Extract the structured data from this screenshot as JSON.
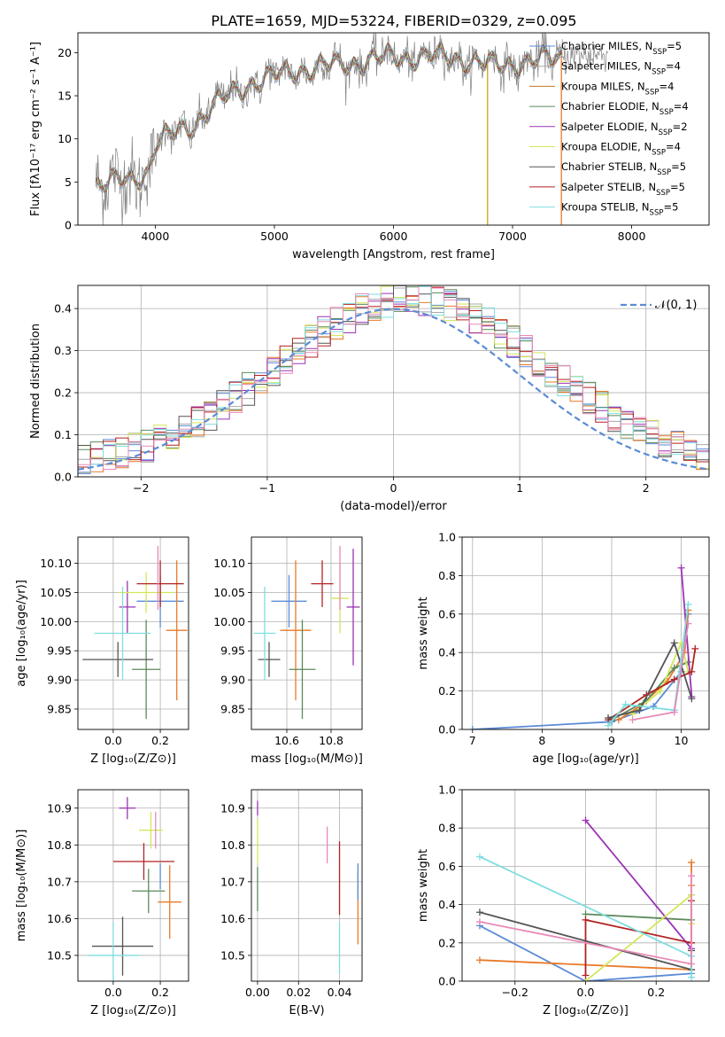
{
  "figure_title": "PLATE=1659, MJD=53224, FIBERID=0329, z=0.095",
  "colors": {
    "Chabrier MILES": "#5b8bd6",
    "Salpeter MILES": "#a9a9a9",
    "Kroupa MILES": "#e87a2a",
    "Chabrier ELODIE": "#5b8a5b",
    "Salpeter ELODIE": "#9b33b5",
    "Kroupa ELODIE": "#d4e65a",
    "Chabrier STELIB": "#555555",
    "Salpeter STELIB": "#b22222",
    "Kroupa STELIB": "#7fdde0",
    "Kroupa ELODIE (E(B-V))": "#e88ab8",
    "reference": "#5b8bd6"
  },
  "chart_data": [
    {
      "id": "spectrum",
      "type": "line",
      "xlabel": "wavelength [Angstrom, rest frame]",
      "ylabel": "Flux [fλ10⁻¹⁷ erg cm⁻² s⁻¹ A⁻¹]",
      "xlim": [
        3350,
        8650
      ],
      "ylim": [
        0,
        22.3
      ],
      "xticks": [
        4000,
        5000,
        6000,
        7000,
        8000
      ],
      "yticks": [
        0,
        5,
        10,
        15,
        20
      ],
      "grid": false,
      "legend_position": "right",
      "legend": [
        {
          "text": "Chabrier MILES, N",
          "sub": "SSP",
          "tail": "=5",
          "color": "#5b8bd6"
        },
        {
          "text": "Salpeter MILES, N",
          "sub": "SSP",
          "tail": "=4",
          "color": "#a9a9a9"
        },
        {
          "text": "Kroupa MILES, N",
          "sub": "SSP",
          "tail": "=4",
          "color": "#c07a20"
        },
        {
          "text": "Chabrier ELODIE, N",
          "sub": "SSP",
          "tail": "=4",
          "color": "#5b8a5b"
        },
        {
          "text": "Salpeter ELODIE, N",
          "sub": "SSP",
          "tail": "=2",
          "color": "#9b33b5"
        },
        {
          "text": "Kroupa ELODIE, N",
          "sub": "SSP",
          "tail": "=4",
          "color": "#d4e65a"
        },
        {
          "text": "Chabrier STELIB, N",
          "sub": "SSP",
          "tail": "=5",
          "color": "#555555"
        },
        {
          "text": "Salpeter STELIB, N",
          "sub": "SSP",
          "tail": "=5",
          "color": "#b22222"
        },
        {
          "text": "Kroupa STELIB, N",
          "sub": "SSP",
          "tail": "=5",
          "color": "#7fdde0"
        }
      ],
      "continuum_knots": [
        [
          3500,
          4.8
        ],
        [
          3800,
          5.2
        ],
        [
          3950,
          6.5
        ],
        [
          4000,
          9.5
        ],
        [
          4300,
          11.5
        ],
        [
          4500,
          14.0
        ],
        [
          4800,
          16.5
        ],
        [
          5200,
          18.0
        ],
        [
          5500,
          18.5
        ],
        [
          6000,
          19.5
        ],
        [
          6500,
          19.5
        ],
        [
          6800,
          18.5
        ],
        [
          7200,
          19.0
        ],
        [
          7400,
          19.5
        ],
        [
          8000,
          20.0
        ],
        [
          8400,
          20.0
        ]
      ],
      "spikes": [
        {
          "x": 6790,
          "y0": 0,
          "y1": 18.6,
          "color": "#d4a020"
        },
        {
          "x": 7410,
          "y0": 0,
          "y1": 19.5,
          "color": "#e87a2a"
        }
      ]
    },
    {
      "id": "residuals",
      "type": "line",
      "xlabel": "(data-model)/error",
      "ylabel": "Normed distribution",
      "xlim": [
        -2.5,
        2.5
      ],
      "ylim": [
        0,
        0.455
      ],
      "xticks": [
        -2,
        -1,
        0,
        1,
        2
      ],
      "yticks": [
        0.0,
        0.1,
        0.2,
        0.3,
        0.4
      ],
      "grid": true,
      "legend_position": "upper right",
      "legend": [
        {
          "text": "𝒩(0, 1)",
          "color": "#5b8bd6",
          "dashed": true
        }
      ],
      "histogram_bin_width": 0.1,
      "histogram_series_colors": [
        "#5b8bd6",
        "#a9a9a9",
        "#e87a2a",
        "#5b8a5b",
        "#9b33b5",
        "#d4e65a",
        "#555555",
        "#b22222",
        "#7fdde0",
        "#e88ab8"
      ]
    },
    {
      "id": "age_vs_Z",
      "type": "scatter",
      "xlabel": "Z [log₁₀(Z/Z⊙)]",
      "ylabel": "age  [log₁₀(age/yr)]",
      "xlim": [
        -0.15,
        0.32
      ],
      "ylim": [
        9.815,
        10.145
      ],
      "xticks": [
        0.0,
        0.2
      ],
      "yticks": [
        9.85,
        9.9,
        9.95,
        10.0,
        10.05,
        10.1
      ],
      "points": [
        {
          "x": 0.2,
          "y": 10.035,
          "xerr": 0.1,
          "yerr": 0.045,
          "color": "#5b8bd6"
        },
        {
          "x": 0.27,
          "y": 9.985,
          "xerr": 0.045,
          "yerr": 0.12,
          "color": "#e87a2a"
        },
        {
          "x": 0.14,
          "y": 9.918,
          "xerr": 0.06,
          "yerr": 0.085,
          "color": "#5b8a5b"
        },
        {
          "x": 0.06,
          "y": 10.025,
          "xerr": 0.035,
          "yerr": 0.045,
          "color": "#9b33b5"
        },
        {
          "x": 0.14,
          "y": 10.05,
          "xerr": 0.12,
          "yerr": 0.035,
          "color": "#d4e65a"
        },
        {
          "x": 0.2,
          "y": 10.065,
          "xerr": 0.1,
          "yerr": 0.04,
          "color": "#b22222"
        },
        {
          "x": 0.02,
          "y": 9.935,
          "xerr": 0.15,
          "yerr": 0.03,
          "color": "#555555"
        },
        {
          "x": 0.04,
          "y": 9.98,
          "xerr": 0.12,
          "yerr": 0.08,
          "color": "#7fdde0"
        },
        {
          "x": 0.19,
          "y": 10.075,
          "xerr": 0.0,
          "yerr": 0.055,
          "color": "#e88ab8"
        }
      ]
    },
    {
      "id": "age_vs_mass",
      "type": "scatter",
      "xlabel": "mass [log₁₀(M/M⊙)]",
      "ylabel": "",
      "xlim": [
        10.44,
        10.94
      ],
      "ylim": [
        9.815,
        10.145
      ],
      "xticks": [
        10.6,
        10.8
      ],
      "yticks": [
        9.85,
        9.9,
        9.95,
        10.0,
        10.05,
        10.1
      ],
      "points": [
        {
          "x": 10.61,
          "y": 10.035,
          "xerr": 0.08,
          "yerr": 0.045,
          "color": "#5b8bd6"
        },
        {
          "x": 10.64,
          "y": 9.985,
          "xerr": 0.07,
          "yerr": 0.12,
          "color": "#e87a2a"
        },
        {
          "x": 10.67,
          "y": 9.918,
          "xerr": 0.06,
          "yerr": 0.085,
          "color": "#5b8a5b"
        },
        {
          "x": 10.9,
          "y": 10.025,
          "xerr": 0.03,
          "yerr": 0.1,
          "color": "#9b33b5"
        },
        {
          "x": 10.84,
          "y": 10.04,
          "xerr": 0.04,
          "yerr": 0.06,
          "color": "#d4e65a"
        },
        {
          "x": 10.76,
          "y": 10.065,
          "xerr": 0.05,
          "yerr": 0.04,
          "color": "#b22222"
        },
        {
          "x": 10.52,
          "y": 9.935,
          "xerr": 0.05,
          "yerr": 0.03,
          "color": "#555555"
        },
        {
          "x": 10.5,
          "y": 9.98,
          "xerr": 0.05,
          "yerr": 0.08,
          "color": "#7fdde0"
        },
        {
          "x": 10.84,
          "y": 10.075,
          "xerr": 0.0,
          "yerr": 0.055,
          "color": "#e88ab8"
        }
      ]
    },
    {
      "id": "mass_weight_vs_age",
      "type": "line",
      "xlabel": "age  [log₁₀(age/yr)]",
      "ylabel": "mass weight",
      "xlim": [
        6.85,
        10.4
      ],
      "ylim": [
        0,
        1.0
      ],
      "xticks": [
        7,
        8,
        9,
        10
      ],
      "yticks": [
        0.0,
        0.2,
        0.4,
        0.6,
        0.8,
        1.0
      ],
      "grid": true,
      "series": [
        {
          "color": "#5b8bd6",
          "x": [
            7.0,
            9.0,
            9.6,
            10.0,
            10.1
          ],
          "y": [
            0.0,
            0.04,
            0.12,
            0.3,
            0.6
          ]
        },
        {
          "color": "#e87a2a",
          "x": [
            9.1,
            9.4,
            9.8,
            10.05,
            10.1
          ],
          "y": [
            0.05,
            0.12,
            0.25,
            0.4,
            0.62
          ]
        },
        {
          "color": "#5b8a5b",
          "x": [
            9.0,
            9.5,
            9.9,
            10.1
          ],
          "y": [
            0.05,
            0.15,
            0.32,
            0.35
          ]
        },
        {
          "color": "#9b33b5",
          "x": [
            10.0,
            10.15
          ],
          "y": [
            0.84,
            0.17
          ]
        },
        {
          "color": "#d4e65a",
          "x": [
            9.3,
            9.7,
            10.0,
            10.1
          ],
          "y": [
            0.08,
            0.2,
            0.45,
            0.3
          ]
        },
        {
          "color": "#b22222",
          "x": [
            8.95,
            9.5,
            9.9,
            10.15,
            10.2
          ],
          "y": [
            0.05,
            0.18,
            0.26,
            0.3,
            0.42
          ]
        },
        {
          "color": "#555555",
          "x": [
            8.95,
            9.4,
            9.9,
            10.15
          ],
          "y": [
            0.06,
            0.1,
            0.45,
            0.16
          ]
        },
        {
          "color": "#7fdde0",
          "x": [
            8.95,
            9.2,
            9.9,
            10.1
          ],
          "y": [
            0.02,
            0.13,
            0.1,
            0.65
          ]
        },
        {
          "color": "#e88ab8",
          "x": [
            9.3,
            9.9,
            10.1
          ],
          "y": [
            0.05,
            0.09,
            0.55
          ]
        }
      ]
    },
    {
      "id": "mass_vs_Z",
      "type": "scatter",
      "xlabel": "Z [log₁₀(Z/Z⊙)]",
      "ylabel": "mass [log₁₀(M/M⊙)]",
      "xlim": [
        -0.15,
        0.32
      ],
      "ylim": [
        10.43,
        10.95
      ],
      "xticks": [
        0.0,
        0.2
      ],
      "yticks": [
        10.5,
        10.6,
        10.7,
        10.8,
        10.9
      ],
      "points": [
        {
          "x": 0.2,
          "y": 10.715,
          "xerr": 0.0,
          "yerr": 0.035,
          "color": "#5b8bd6"
        },
        {
          "x": 0.24,
          "y": 10.645,
          "xerr": 0.05,
          "yerr": 0.1,
          "color": "#e87a2a"
        },
        {
          "x": 0.15,
          "y": 10.675,
          "xerr": 0.07,
          "yerr": 0.06,
          "color": "#5b8a5b"
        },
        {
          "x": 0.06,
          "y": 10.9,
          "xerr": 0.035,
          "yerr": 0.03,
          "color": "#9b33b5"
        },
        {
          "x": 0.16,
          "y": 10.84,
          "xerr": 0.05,
          "yerr": 0.05,
          "color": "#d4e65a"
        },
        {
          "x": 0.13,
          "y": 10.755,
          "xerr": 0.13,
          "yerr": 0.05,
          "color": "#b22222"
        },
        {
          "x": 0.04,
          "y": 10.525,
          "xerr": 0.13,
          "yerr": 0.08,
          "color": "#555555"
        },
        {
          "x": 0.0,
          "y": 10.5,
          "xerr": 0.11,
          "yerr": 0.09,
          "color": "#7fdde0"
        },
        {
          "x": 0.18,
          "y": 10.84,
          "xerr": 0.0,
          "yerr": 0.05,
          "color": "#e88ab8"
        }
      ]
    },
    {
      "id": "mass_vs_ebv",
      "type": "scatter",
      "xlabel": "E(B-V)",
      "ylabel": "",
      "xlim": [
        -0.003,
        0.051
      ],
      "ylim": [
        10.43,
        10.95
      ],
      "xticks": [
        0.0,
        0.02,
        0.04
      ],
      "yticks": [
        10.5,
        10.6,
        10.7,
        10.8,
        10.9
      ],
      "points": [
        {
          "x": 0.0,
          "y": 10.9,
          "yerr": 0.02,
          "color": "#9b33b5"
        },
        {
          "x": 0.0,
          "y": 10.81,
          "yerr": 0.06,
          "color": "#d4e65a"
        },
        {
          "x": 0.0,
          "y": 10.68,
          "yerr": 0.06,
          "color": "#5b8a5b"
        },
        {
          "x": 0.034,
          "y": 10.8,
          "yerr": 0.05,
          "color": "#e88ab8"
        },
        {
          "x": 0.04,
          "y": 10.71,
          "yerr": 0.1,
          "color": "#b22222"
        },
        {
          "x": 0.04,
          "y": 10.52,
          "yerr": 0.07,
          "color": "#7fdde0"
        },
        {
          "x": 0.049,
          "y": 10.63,
          "yerr": 0.1,
          "color": "#e87a2a"
        },
        {
          "x": 0.049,
          "y": 10.7,
          "yerr": 0.05,
          "color": "#5b8bd6"
        }
      ]
    },
    {
      "id": "mass_weight_vs_Z",
      "type": "line",
      "xlabel": "Z [log₁₀(Z/Z⊙)]",
      "ylabel": "mass weight",
      "xlim": [
        -0.35,
        0.35
      ],
      "ylim": [
        0,
        1.0
      ],
      "xticks": [
        -0.2,
        0.0,
        0.2
      ],
      "yticks": [
        0.0,
        0.2,
        0.4,
        0.6,
        0.8,
        1.0
      ],
      "grid": true,
      "series": [
        {
          "color": "#5b8bd6",
          "x": [
            -0.3,
            0.0,
            0.3
          ],
          "y": [
            0.29,
            0.0,
            0.04
          ]
        },
        {
          "color": "#e87a2a",
          "x": [
            -0.3,
            0.3,
            0.3,
            0.3
          ],
          "y": [
            0.11,
            0.06,
            0.5,
            0.62
          ]
        },
        {
          "color": "#5b8a5b",
          "x": [
            0.0,
            0.3,
            0.3
          ],
          "y": [
            0.35,
            0.32,
            0.45
          ]
        },
        {
          "color": "#9b33b5",
          "x": [
            0.0,
            0.3
          ],
          "y": [
            0.84,
            0.17
          ]
        },
        {
          "color": "#d4e65a",
          "x": [
            0.0,
            0.3,
            0.3
          ],
          "y": [
            0.0,
            0.45,
            0.3
          ]
        },
        {
          "color": "#b22222",
          "x": [
            0.0,
            0.0,
            0.3,
            0.3
          ],
          "y": [
            0.03,
            0.32,
            0.2,
            0.42
          ]
        },
        {
          "color": "#555555",
          "x": [
            -0.3,
            0.3,
            0.3
          ],
          "y": [
            0.36,
            0.06,
            0.16
          ]
        },
        {
          "color": "#7fdde0",
          "x": [
            -0.3,
            0.3,
            0.3
          ],
          "y": [
            0.65,
            0.13,
            0.02
          ]
        },
        {
          "color": "#e88ab8",
          "x": [
            -0.3,
            0.3,
            0.3
          ],
          "y": [
            0.31,
            0.09,
            0.55
          ]
        }
      ]
    }
  ]
}
